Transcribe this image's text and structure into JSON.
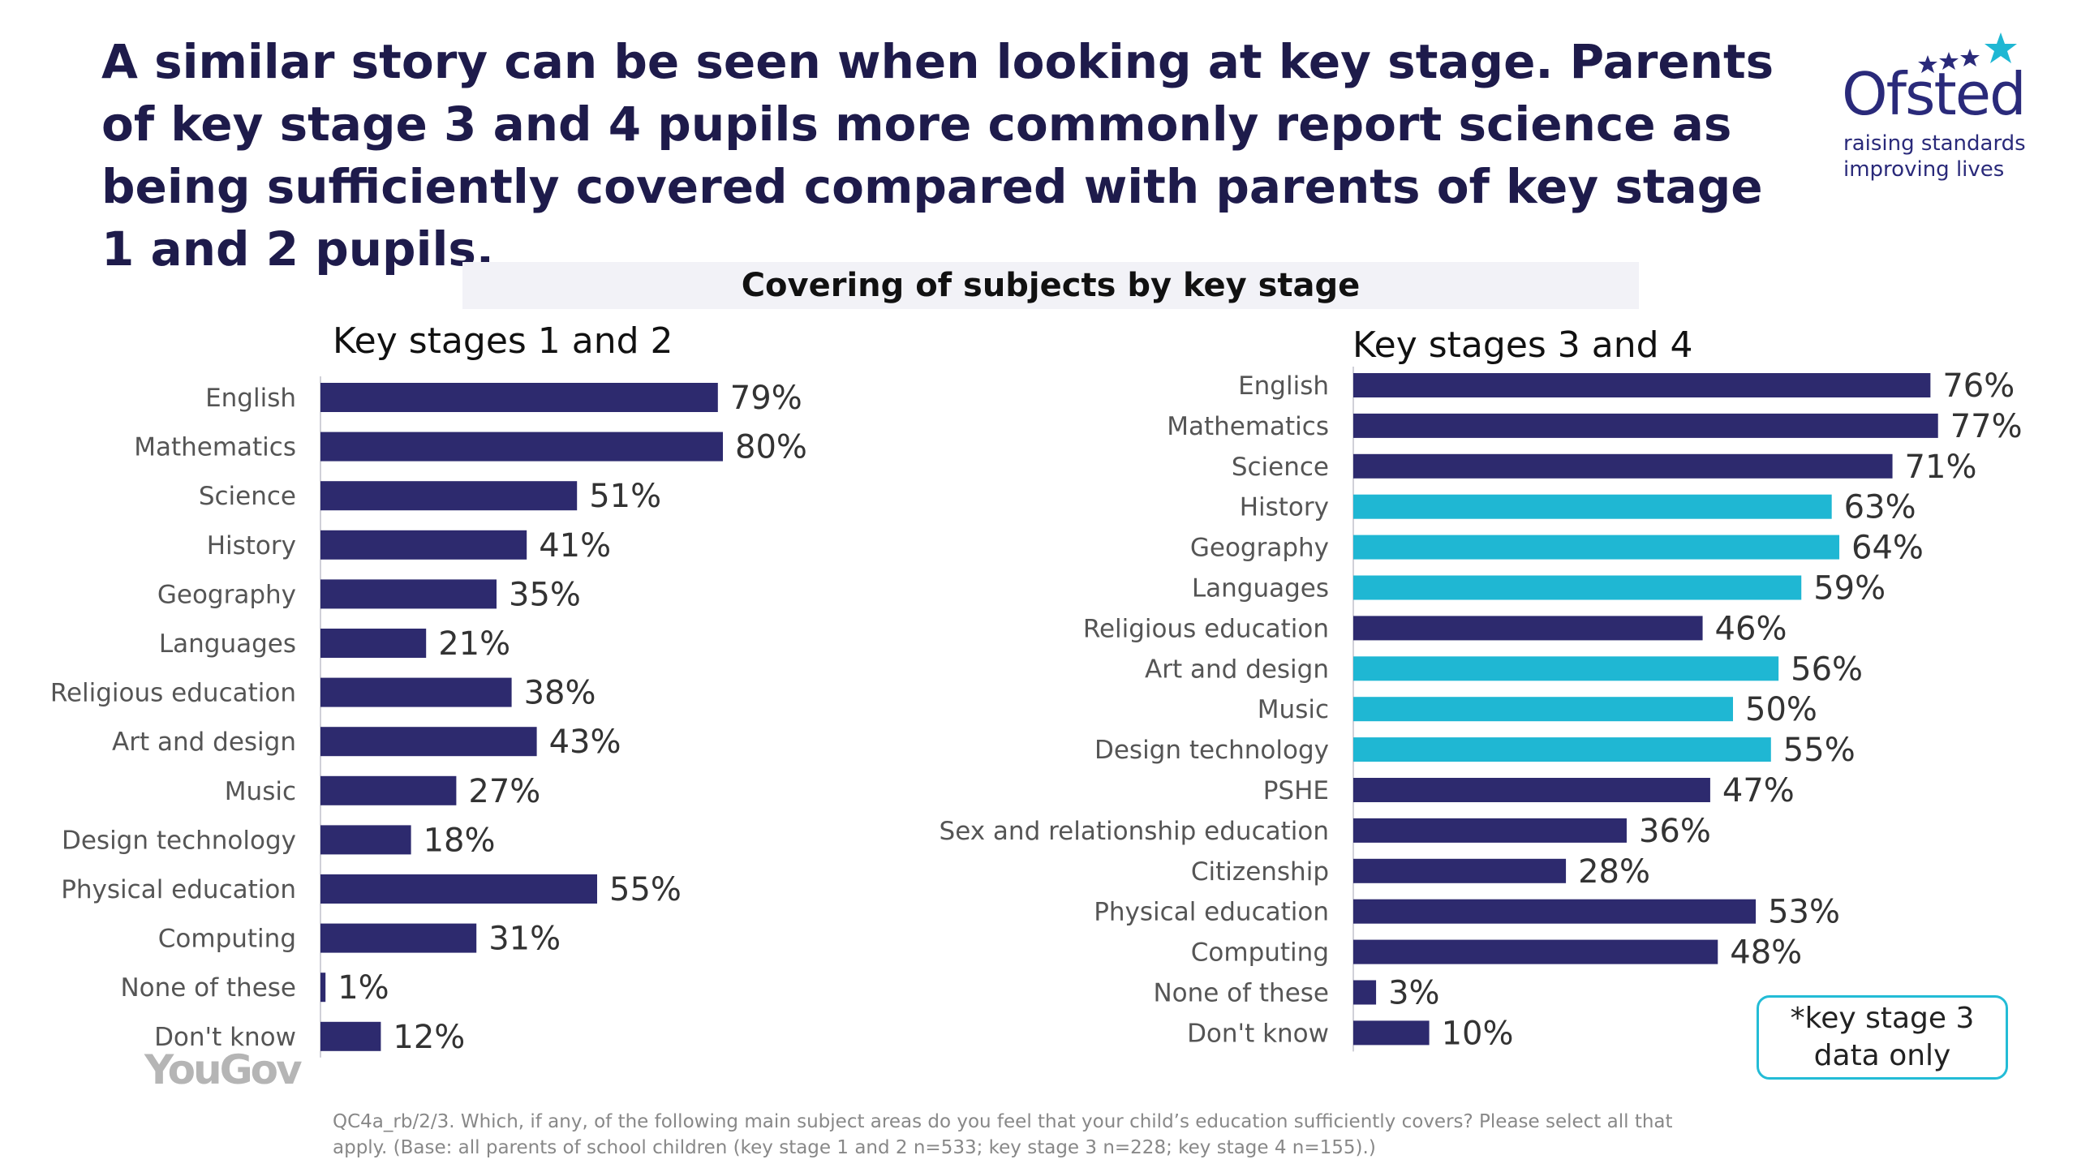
{
  "slide": {
    "headline": "A similar story can be seen when looking at key stage. Parents of key stage 3 and 4 pupils more commonly report science as being sufficiently covered compared with parents of key stage 1 and 2 pupils.",
    "logo": {
      "name": "Ofsted",
      "tagline_1": "raising standards",
      "tagline_2": "improving lives",
      "icon": "stars-logo-icon"
    },
    "source_logo": "YouGov",
    "note": "*key stage 3\ndata only",
    "footnote": "QC4a_rb/2/3. Which, if any, of the following main subject areas do you feel that your child’s education sufficiently covers? Please select all that apply. (Base: all parents of school children (key stage 1 and 2 n=533; key stage 3 n=228; key stage 4 n=155).)"
  },
  "colors": {
    "navy": "#2d2a6e",
    "cyan": "#1fb7d3",
    "text": "#1e1b4b"
  },
  "chart_data": {
    "title": "Covering of subjects by key stage",
    "type": "bar",
    "orientation": "horizontal",
    "value_unit": "%",
    "panels": [
      {
        "title": "Key stages 1 and 2",
        "categories": [
          "English",
          "Mathematics",
          "Science",
          "History",
          "Geography",
          "Languages",
          "Religious education",
          "Art and design",
          "Music",
          "Design technology",
          "Physical education",
          "Computing",
          "None of these",
          "Don't know"
        ],
        "values": [
          79,
          80,
          51,
          41,
          35,
          21,
          38,
          43,
          27,
          18,
          55,
          31,
          1,
          12
        ],
        "labels": [
          "79%",
          "80%",
          "51%",
          "41%",
          "35%",
          "21%",
          "38%",
          "43%",
          "27%",
          "18%",
          "55%",
          "31%",
          "1%",
          "12%"
        ],
        "key_stage_3_only": [
          false,
          false,
          false,
          false,
          false,
          false,
          false,
          false,
          false,
          false,
          false,
          false,
          false,
          false
        ]
      },
      {
        "title": "Key stages 3 and 4",
        "categories": [
          "English",
          "Mathematics",
          "Science",
          "History",
          "Geography",
          "Languages",
          "Religious education",
          "Art and design",
          "Music",
          "Design technology",
          "PSHE",
          "Sex and relationship education",
          "Citizenship",
          "Physical education",
          "Computing",
          "None of these",
          "Don't know"
        ],
        "values": [
          76,
          77,
          71,
          63,
          64,
          59,
          46,
          56,
          50,
          55,
          47,
          36,
          28,
          53,
          48,
          3,
          10
        ],
        "labels": [
          "76%",
          "77%",
          "71%",
          "63%",
          "64%",
          "59%",
          "46%",
          "56%",
          "50%",
          "55%",
          "47%",
          "36%",
          "28%",
          "53%",
          "48%",
          "3%",
          "10%"
        ],
        "key_stage_3_only": [
          false,
          false,
          false,
          true,
          true,
          true,
          false,
          true,
          true,
          true,
          false,
          false,
          false,
          false,
          false,
          false,
          false
        ]
      }
    ]
  }
}
